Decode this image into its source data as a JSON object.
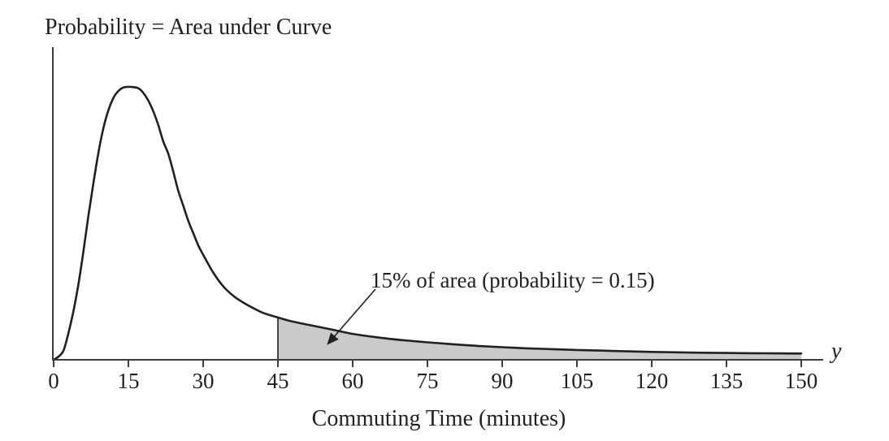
{
  "figure": {
    "title": "Probability = Area under Curve",
    "annotation": "15% of area (probability = 0.15)",
    "x_axis_title": "Commuting Time (minutes)",
    "y_variable_label": "y"
  },
  "colors": {
    "background": "#ffffff",
    "curve": "#231f20",
    "axis": "#3d3d3e",
    "text": "#231f20",
    "shade_fill": "#c9cacb"
  },
  "chart_data": {
    "type": "area",
    "title": "Probability = Area under Curve",
    "xlabel": "Commuting Time (minutes)",
    "ylabel": "",
    "x_variable": "y",
    "xlim": [
      0,
      155
    ],
    "x_ticks": [
      0,
      15,
      30,
      45,
      60,
      75,
      90,
      105,
      120,
      135,
      150
    ],
    "grid": false,
    "legend": false,
    "description": "Right-skewed probability density curve of commuting time; mode near 15 minutes; tail shaded from 45 to 150 minutes",
    "shaded_region": {
      "from_x": 45,
      "to_x": 150,
      "area_fraction": 0.15,
      "probability": 0.15,
      "label": "15% of area (probability = 0.15)"
    },
    "curve_points": [
      [
        0,
        0
      ],
      [
        1,
        0.012
      ],
      [
        2,
        0.035
      ],
      [
        3,
        0.1
      ],
      [
        4,
        0.18
      ],
      [
        5,
        0.28
      ],
      [
        6,
        0.4
      ],
      [
        7,
        0.53
      ],
      [
        8,
        0.65
      ],
      [
        9,
        0.76
      ],
      [
        10,
        0.85
      ],
      [
        11,
        0.915
      ],
      [
        12,
        0.96
      ],
      [
        13,
        0.985
      ],
      [
        14,
        0.998
      ],
      [
        15.5,
        1.0
      ],
      [
        17,
        0.995
      ],
      [
        18,
        0.978
      ],
      [
        19,
        0.95
      ],
      [
        20,
        0.91
      ],
      [
        21,
        0.86
      ],
      [
        22,
        0.8
      ],
      [
        23,
        0.755
      ],
      [
        24,
        0.69
      ],
      [
        25,
        0.62
      ],
      [
        26,
        0.565
      ],
      [
        27,
        0.51
      ],
      [
        28,
        0.465
      ],
      [
        29,
        0.42
      ],
      [
        30,
        0.385
      ],
      [
        32,
        0.32
      ],
      [
        34,
        0.27
      ],
      [
        36,
        0.235
      ],
      [
        38,
        0.21
      ],
      [
        40,
        0.19
      ],
      [
        42,
        0.172
      ],
      [
        45,
        0.155
      ],
      [
        48,
        0.14
      ],
      [
        52,
        0.125
      ],
      [
        56,
        0.11
      ],
      [
        60,
        0.095
      ],
      [
        65,
        0.082
      ],
      [
        70,
        0.072
      ],
      [
        75,
        0.064
      ],
      [
        80,
        0.057
      ],
      [
        85,
        0.051
      ],
      [
        90,
        0.046
      ],
      [
        95,
        0.042
      ],
      [
        100,
        0.039
      ],
      [
        105,
        0.036
      ],
      [
        110,
        0.0335
      ],
      [
        115,
        0.031
      ],
      [
        120,
        0.029
      ],
      [
        125,
        0.0275
      ],
      [
        130,
        0.026
      ],
      [
        135,
        0.025
      ],
      [
        140,
        0.024
      ],
      [
        145,
        0.0235
      ],
      [
        150,
        0.023
      ]
    ]
  }
}
